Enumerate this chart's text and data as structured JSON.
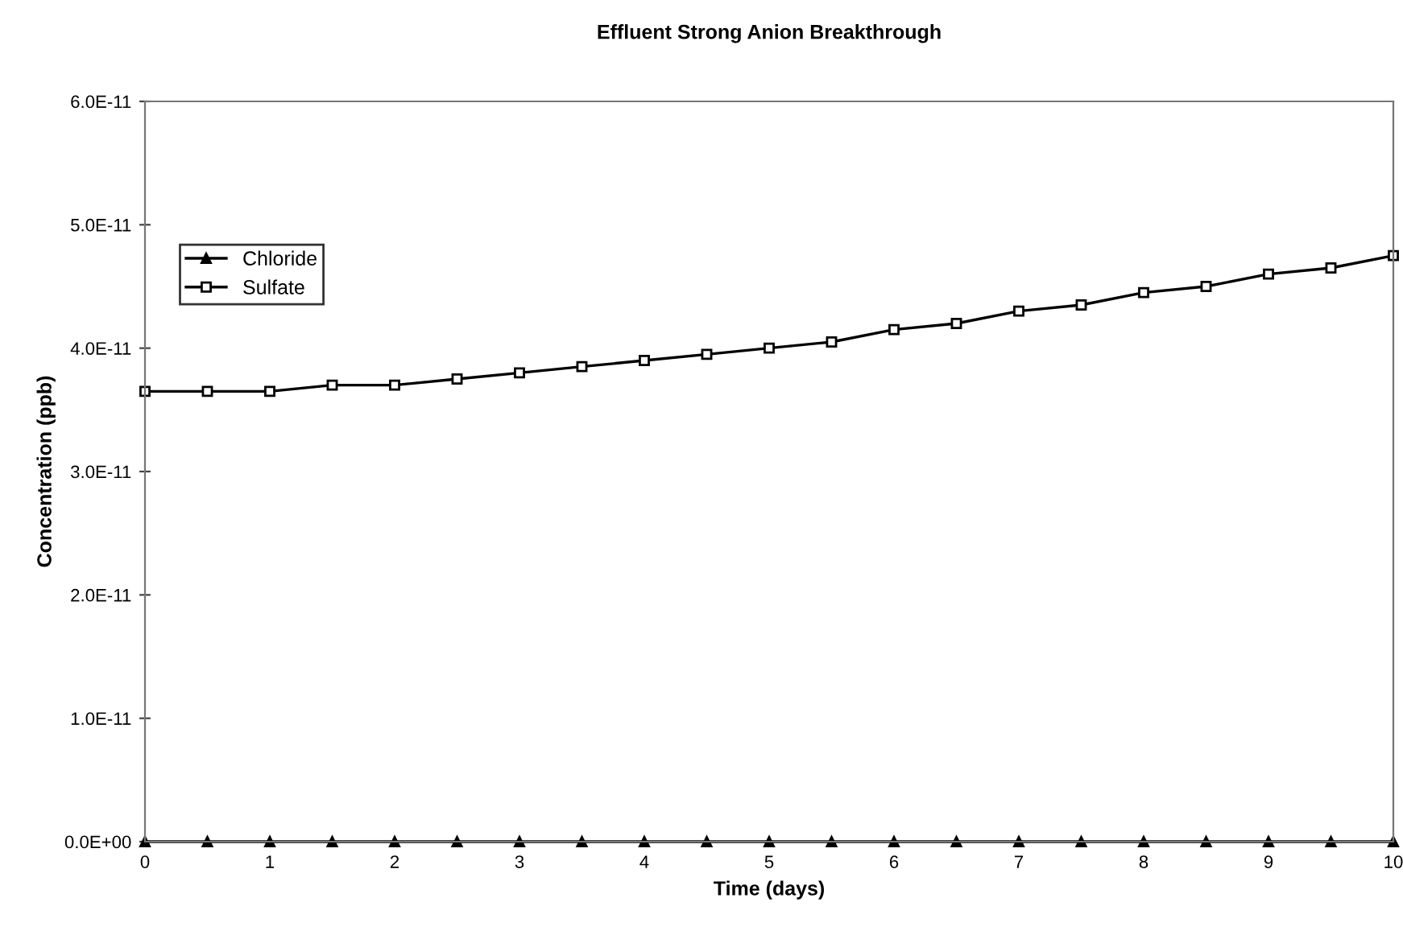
{
  "chart_data": {
    "type": "line",
    "title": "Effluent Strong Anion Breakthrough",
    "xlabel": "Time (days)",
    "ylabel": "Concentration (ppb)",
    "x": [
      0,
      0.5,
      1,
      1.5,
      2,
      2.5,
      3,
      3.5,
      4,
      4.5,
      5,
      5.5,
      6,
      6.5,
      7,
      7.5,
      8,
      8.5,
      9,
      9.5,
      10
    ],
    "series": [
      {
        "name": "Chloride",
        "color": "#000000",
        "marker": "triangle",
        "values": [
          0,
          0,
          0,
          0,
          0,
          0,
          0,
          0,
          0,
          0,
          0,
          0,
          0,
          0,
          0,
          0,
          0,
          0,
          0,
          0,
          0
        ]
      },
      {
        "name": "Sulfate",
        "color": "#000000",
        "marker": "square",
        "values": [
          3.65e-11,
          3.65e-11,
          3.65e-11,
          3.7e-11,
          3.7e-11,
          3.75e-11,
          3.8e-11,
          3.85e-11,
          3.9e-11,
          3.95e-11,
          4e-11,
          4.05e-11,
          4.15e-11,
          4.2e-11,
          4.3e-11,
          4.35e-11,
          4.45e-11,
          4.5e-11,
          4.6e-11,
          4.65e-11,
          4.75e-11
        ]
      }
    ],
    "xlim": [
      0,
      10
    ],
    "xticks": [
      0,
      1,
      2,
      3,
      4,
      5,
      6,
      7,
      8,
      9,
      10
    ],
    "ylim": [
      0,
      6e-11
    ],
    "yticks": [
      {
        "value": 0,
        "label": "0.0E+00"
      },
      {
        "value": 1e-11,
        "label": "1.0E-11"
      },
      {
        "value": 2e-11,
        "label": "2.0E-11"
      },
      {
        "value": 3e-11,
        "label": "3.0E-11"
      },
      {
        "value": 4e-11,
        "label": "4.0E-11"
      },
      {
        "value": 5e-11,
        "label": "5.0E-11"
      },
      {
        "value": 6e-11,
        "label": "6.0E-11"
      }
    ],
    "grid": false,
    "legend": "top left"
  }
}
